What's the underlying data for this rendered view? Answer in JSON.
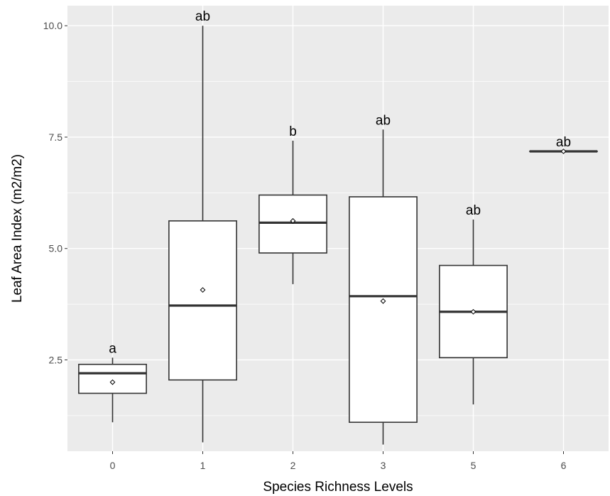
{
  "chart_data": {
    "type": "box",
    "xlabel": "Species Richness Levels",
    "ylabel": "Leaf Area Index (m2/m2)",
    "categories": [
      "0",
      "1",
      "2",
      "3",
      "5",
      "6"
    ],
    "yticks": [
      2.5,
      5.0,
      7.5,
      10.0
    ],
    "ytick_labels": [
      "2.5",
      "5.0",
      "7.5",
      "10.0"
    ],
    "ylim": [
      0.45,
      10.45
    ],
    "grid": true,
    "boxes": [
      {
        "category": "0",
        "min": 1.1,
        "q1": 1.75,
        "median": 2.2,
        "q3": 2.4,
        "max": 2.55,
        "mean": 2.0,
        "label": "a"
      },
      {
        "category": "1",
        "min": 0.65,
        "q1": 2.05,
        "median": 3.72,
        "q3": 5.62,
        "max": 10.0,
        "mean": 4.07,
        "label": "ab"
      },
      {
        "category": "2",
        "min": 4.2,
        "q1": 4.9,
        "median": 5.58,
        "q3": 6.2,
        "max": 7.42,
        "mean": 5.62,
        "label": "b"
      },
      {
        "category": "3",
        "min": 0.6,
        "q1": 1.1,
        "median": 3.93,
        "q3": 6.16,
        "max": 7.67,
        "mean": 3.82,
        "label": "ab"
      },
      {
        "category": "5",
        "min": 1.5,
        "q1": 2.55,
        "median": 3.58,
        "q3": 4.62,
        "max": 5.65,
        "mean": 3.58,
        "label": "ab"
      },
      {
        "category": "6",
        "min": 7.18,
        "q1": 7.18,
        "median": 7.18,
        "q3": 7.18,
        "max": 7.18,
        "mean": 7.18,
        "label": "ab"
      }
    ]
  },
  "colors": {
    "panel_background": "#ebebeb",
    "grid_major": "#ffffff",
    "box_fill": "#ffffff",
    "box_stroke": "#333333",
    "tick_text": "#4d4d4d",
    "title_text": "#000000"
  }
}
